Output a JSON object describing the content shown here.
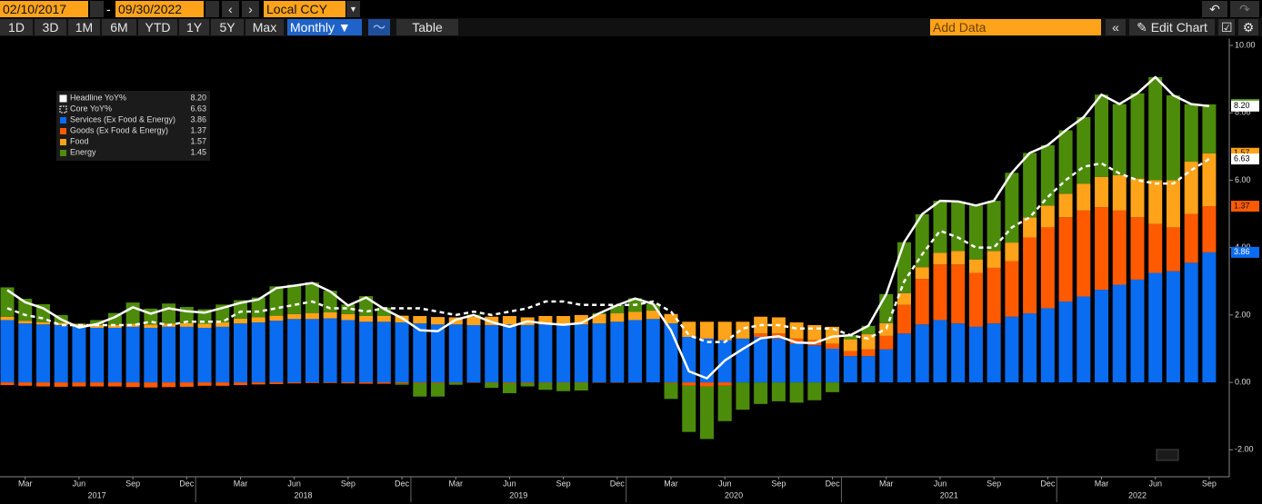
{
  "toolbar": {
    "start_date": "02/10/2017",
    "date_sep": "-",
    "end_date": "09/30/2022",
    "currency": "Local CCY",
    "periods": [
      "1D",
      "3D",
      "1M",
      "6M",
      "YTD",
      "1Y",
      "5Y",
      "Max"
    ],
    "frequency": "Monthly ▼",
    "table": "Table",
    "add_data": "Add Data",
    "edit_chart": "Edit Chart"
  },
  "chart_data": {
    "type": "bar",
    "stacked": true,
    "categories": [
      null,
      "Mar",
      null,
      null,
      "Jun",
      null,
      null,
      "Sep",
      null,
      null,
      "Dec",
      null,
      null,
      "Mar",
      null,
      null,
      "Jun",
      null,
      null,
      "Sep",
      null,
      null,
      "Dec",
      null,
      null,
      "Mar",
      null,
      null,
      "Jun",
      null,
      null,
      "Sep",
      null,
      null,
      "Dec",
      null,
      null,
      "Mar",
      null,
      null,
      "Jun",
      null,
      null,
      "Sep",
      null,
      null,
      "Dec",
      null,
      null,
      "Mar",
      null,
      null,
      "Jun",
      null,
      null,
      "Sep",
      null,
      null,
      "Dec",
      null,
      null,
      "Mar",
      null,
      null,
      "Jun",
      null,
      null,
      "Sep"
    ],
    "year_labels": [
      "2017",
      "2018",
      "2019",
      "2020",
      "2021",
      "2022"
    ],
    "ylim": [
      -2.8,
      10.2
    ],
    "yticks": [
      {
        "value": -2,
        "label": "-2.00"
      },
      {
        "value": 0,
        "label": "0.00"
      },
      {
        "value": 2,
        "label": "2.00"
      },
      {
        "value": 4,
        "label": "4.00"
      },
      {
        "value": 6,
        "label": "6.00"
      },
      {
        "value": 8,
        "label": "8.00"
      },
      {
        "value": 10,
        "label": "10.00"
      }
    ],
    "series": [
      {
        "name": "Headline YoY%",
        "kind": "line",
        "color": "#ffffff",
        "last_label": "8.20",
        "values": [
          2.74,
          2.38,
          2.2,
          1.87,
          1.63,
          1.73,
          1.94,
          2.23,
          2.04,
          2.2,
          2.11,
          2.07,
          2.21,
          2.36,
          2.46,
          2.8,
          2.87,
          2.95,
          2.7,
          2.28,
          2.52,
          2.18,
          1.91,
          1.55,
          1.52,
          1.86,
          2.0,
          1.79,
          1.65,
          1.81,
          1.75,
          1.71,
          1.76,
          2.05,
          2.29,
          2.49,
          2.33,
          1.54,
          0.33,
          0.12,
          0.65,
          0.99,
          1.31,
          1.37,
          1.18,
          1.17,
          1.36,
          1.4,
          1.68,
          2.62,
          4.16,
          4.99,
          5.39,
          5.37,
          5.25,
          5.39,
          6.22,
          6.81,
          7.04,
          7.48,
          7.87,
          8.54,
          8.26,
          8.58,
          9.06,
          8.52,
          8.26,
          8.2
        ]
      },
      {
        "name": "Core YoY%",
        "kind": "line",
        "dashed": true,
        "color": "#ffffff",
        "last_label": "6.63",
        "values": [
          2.2,
          2.0,
          1.9,
          1.7,
          1.7,
          1.7,
          1.7,
          1.7,
          1.8,
          1.7,
          1.8,
          1.8,
          1.8,
          2.1,
          2.1,
          2.2,
          2.3,
          2.4,
          2.2,
          2.2,
          2.1,
          2.2,
          2.2,
          2.2,
          2.1,
          2.0,
          2.1,
          2.0,
          2.1,
          2.2,
          2.4,
          2.4,
          2.3,
          2.3,
          2.3,
          2.3,
          2.4,
          2.1,
          1.4,
          1.2,
          1.2,
          1.6,
          1.7,
          1.7,
          1.6,
          1.6,
          1.6,
          1.4,
          1.3,
          1.6,
          3.0,
          3.8,
          4.5,
          4.3,
          4.0,
          4.0,
          4.6,
          4.9,
          5.5,
          6.0,
          6.4,
          6.5,
          6.2,
          6.0,
          5.9,
          5.9,
          6.3,
          6.63
        ]
      },
      {
        "name": "Services (Ex Food & Energy)",
        "kind": "bar",
        "color": "#0a6cf0",
        "last_label": "3.86",
        "values": [
          1.85,
          1.75,
          1.72,
          1.7,
          1.65,
          1.62,
          1.62,
          1.65,
          1.62,
          1.65,
          1.65,
          1.62,
          1.65,
          1.75,
          1.78,
          1.83,
          1.88,
          1.88,
          1.9,
          1.85,
          1.8,
          1.8,
          1.78,
          1.75,
          1.72,
          1.72,
          1.7,
          1.7,
          1.72,
          1.7,
          1.72,
          1.72,
          1.72,
          1.75,
          1.8,
          1.85,
          1.88,
          1.75,
          1.35,
          1.3,
          1.25,
          1.3,
          1.35,
          1.3,
          1.15,
          1.1,
          1.0,
          0.78,
          0.78,
          0.98,
          1.45,
          1.72,
          1.85,
          1.75,
          1.65,
          1.75,
          1.95,
          2.05,
          2.2,
          2.4,
          2.55,
          2.75,
          2.9,
          3.05,
          3.25,
          3.3,
          3.55,
          3.86
        ]
      },
      {
        "name": "Goods (Ex Food & Energy)",
        "kind": "bar",
        "color": "#ff5a00",
        "last_label": "1.37",
        "values": [
          -0.08,
          -0.1,
          -0.12,
          -0.13,
          -0.12,
          -0.12,
          -0.12,
          -0.14,
          -0.15,
          -0.14,
          -0.13,
          -0.1,
          -0.1,
          -0.08,
          -0.06,
          -0.05,
          -0.03,
          -0.02,
          -0.02,
          -0.03,
          -0.04,
          -0.04,
          -0.03,
          -0.02,
          -0.02,
          -0.01,
          -0.01,
          -0.01,
          -0.02,
          -0.02,
          -0.01,
          -0.01,
          -0.01,
          -0.01,
          -0.01,
          -0.01,
          0.0,
          -0.02,
          -0.1,
          -0.12,
          -0.1,
          0.0,
          0.1,
          0.15,
          0.15,
          0.15,
          0.15,
          0.15,
          0.2,
          0.4,
          0.85,
          1.35,
          1.65,
          1.75,
          1.6,
          1.65,
          1.65,
          2.25,
          2.4,
          2.5,
          2.55,
          2.45,
          2.2,
          1.85,
          1.45,
          1.3,
          1.45,
          1.37
        ]
      },
      {
        "name": "Food",
        "kind": "bar",
        "color": "#ffa31a",
        "last_label": "1.57",
        "values": [
          0.1,
          0.08,
          0.07,
          0.07,
          0.08,
          0.08,
          0.09,
          0.09,
          0.1,
          0.1,
          0.11,
          0.12,
          0.13,
          0.14,
          0.15,
          0.15,
          0.15,
          0.18,
          0.18,
          0.18,
          0.17,
          0.17,
          0.2,
          0.22,
          0.22,
          0.21,
          0.25,
          0.25,
          0.25,
          0.23,
          0.25,
          0.25,
          0.28,
          0.28,
          0.25,
          0.25,
          0.25,
          0.28,
          0.45,
          0.5,
          0.55,
          0.5,
          0.5,
          0.48,
          0.48,
          0.45,
          0.5,
          0.35,
          0.45,
          0.38,
          0.35,
          0.35,
          0.35,
          0.4,
          0.4,
          0.5,
          0.55,
          0.6,
          0.65,
          0.7,
          0.8,
          0.9,
          1.05,
          1.15,
          1.3,
          1.4,
          1.55,
          1.57
        ]
      },
      {
        "name": "Energy",
        "kind": "bar",
        "color": "#4d8c0a",
        "last_label": "1.45",
        "values": [
          0.87,
          0.65,
          0.53,
          0.23,
          0.02,
          0.15,
          0.35,
          0.63,
          0.47,
          0.59,
          0.48,
          0.43,
          0.53,
          0.55,
          0.59,
          0.87,
          0.87,
          0.91,
          0.64,
          0.28,
          0.59,
          0.25,
          -0.04,
          -0.4,
          -0.4,
          -0.06,
          0.06,
          -0.15,
          -0.3,
          -0.1,
          -0.21,
          -0.25,
          -0.23,
          0.03,
          0.25,
          0.4,
          0.2,
          -0.47,
          -1.37,
          -1.56,
          -1.05,
          -0.81,
          -0.64,
          -0.56,
          -0.6,
          -0.53,
          -0.29,
          0.12,
          0.25,
          0.86,
          1.51,
          1.57,
          1.54,
          1.47,
          1.6,
          1.49,
          2.07,
          1.91,
          1.79,
          1.88,
          1.97,
          2.44,
          2.11,
          2.53,
          3.06,
          2.52,
          1.71,
          1.45
        ]
      }
    ]
  }
}
